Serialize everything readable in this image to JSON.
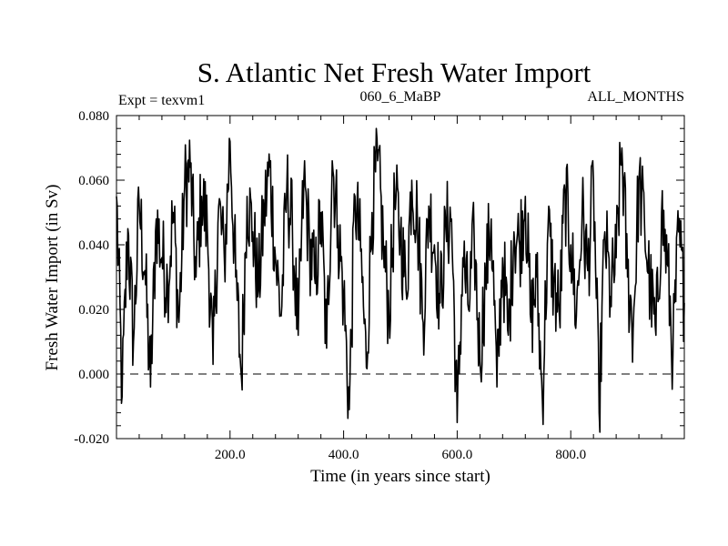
{
  "chart_data": {
    "type": "line",
    "title": "S. Atlantic Net Fresh Water Import",
    "subtitle_left": "Expt = texvm1",
    "subtitle_center": "060_6_MaBP",
    "subtitle_right": "ALL_MONTHS",
    "xlabel": "Time (in years since start)",
    "ylabel": "Fresh Water Import (in Sv)",
    "xlim": [
      0,
      1000
    ],
    "ylim": [
      -0.02,
      0.08
    ],
    "xticks": [
      200,
      400,
      600,
      800
    ],
    "xtick_labels": [
      "200.0",
      "400.0",
      "600.0",
      "800.0"
    ],
    "yticks": [
      -0.02,
      0.0,
      0.02,
      0.04,
      0.06,
      0.08
    ],
    "ytick_labels": [
      "-0.020",
      "0.000",
      "0.020",
      "0.040",
      "0.060",
      "0.080"
    ],
    "reference_line": {
      "y": 0.0,
      "style": "dashed"
    },
    "series": [
      {
        "name": "Net Fresh Water Import",
        "x": [
          0,
          10,
          20,
          30,
          40,
          50,
          60,
          70,
          80,
          90,
          100,
          110,
          120,
          130,
          140,
          150,
          160,
          170,
          180,
          190,
          200,
          210,
          220,
          230,
          240,
          250,
          260,
          270,
          280,
          290,
          300,
          310,
          320,
          330,
          340,
          350,
          360,
          370,
          380,
          390,
          400,
          410,
          420,
          430,
          440,
          450,
          460,
          470,
          480,
          490,
          500,
          510,
          520,
          530,
          540,
          550,
          560,
          570,
          580,
          590,
          600,
          610,
          620,
          630,
          640,
          650,
          660,
          670,
          680,
          690,
          700,
          710,
          720,
          730,
          740,
          750,
          760,
          770,
          780,
          790,
          800,
          810,
          820,
          830,
          840,
          850,
          860,
          870,
          880,
          890,
          900,
          910,
          920,
          930,
          940,
          950,
          960,
          970,
          980,
          990,
          1000
        ],
        "values": [
          0.055,
          -0.007,
          0.045,
          0.01,
          0.052,
          0.032,
          -0.004,
          0.048,
          0.036,
          0.028,
          0.05,
          0.016,
          0.058,
          0.064,
          0.03,
          0.055,
          0.045,
          0.003,
          0.052,
          0.035,
          0.072,
          0.03,
          -0.001,
          0.055,
          0.044,
          0.026,
          0.05,
          0.064,
          0.036,
          0.018,
          0.058,
          0.044,
          0.012,
          0.06,
          0.04,
          0.028,
          0.05,
          0.008,
          0.066,
          0.046,
          0.024,
          -0.011,
          0.055,
          0.038,
          0.002,
          0.05,
          0.066,
          0.04,
          0.018,
          0.054,
          0.044,
          0.026,
          0.06,
          0.048,
          0.016,
          0.052,
          0.04,
          0.022,
          0.045,
          0.048,
          -0.015,
          0.036,
          0.02,
          0.042,
          0.004,
          0.03,
          0.048,
          -0.004,
          0.036,
          0.012,
          0.044,
          0.04,
          0.055,
          0.016,
          0.03,
          -0.008,
          0.045,
          0.028,
          0.018,
          0.056,
          0.04,
          0.018,
          0.05,
          0.032,
          0.06,
          -0.012,
          0.044,
          0.024,
          0.036,
          0.07,
          0.03,
          0.014,
          0.06,
          0.046,
          0.026,
          0.012,
          0.05,
          0.034,
          0.006,
          0.044,
          0.022
        ]
      }
    ]
  }
}
